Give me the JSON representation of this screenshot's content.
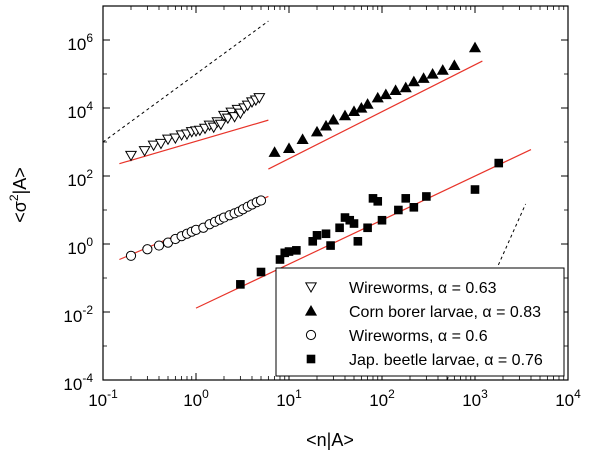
{
  "chart_data": {
    "type": "scatter",
    "title": "",
    "xlabel": "<n|A>",
    "ylabel_parts": [
      "<σ",
      "2",
      "|A>"
    ],
    "x_scale": "log",
    "y_scale": "log",
    "xlim": [
      0.1,
      10000
    ],
    "ylim": [
      0.0001,
      10000000
    ],
    "x_ticks": [
      {
        "base": "10",
        "exp": "-1",
        "value": 0.1
      },
      {
        "base": "10",
        "exp": "0",
        "value": 1
      },
      {
        "base": "10",
        "exp": "1",
        "value": 10
      },
      {
        "base": "10",
        "exp": "2",
        "value": 100
      },
      {
        "base": "10",
        "exp": "3",
        "value": 1000
      },
      {
        "base": "10",
        "exp": "4",
        "value": 10000
      }
    ],
    "y_ticks": [
      {
        "base": "10",
        "exp": "-4",
        "value": 0.0001
      },
      {
        "base": "10",
        "exp": "-2",
        "value": 0.01
      },
      {
        "base": "10",
        "exp": "0",
        "value": 1
      },
      {
        "base": "10",
        "exp": "2",
        "value": 100
      },
      {
        "base": "10",
        "exp": "4",
        "value": 10000
      },
      {
        "base": "10",
        "exp": "6",
        "value": 1000000
      }
    ],
    "grid": false,
    "legend_position": "bottom-right",
    "series": [
      {
        "name": "Wireworms, α = 0.63",
        "marker": "triangle-down-open",
        "fit": {
          "x": [
            0.15,
            6
          ],
          "y": [
            230,
            4400
          ]
        },
        "points": [
          [
            0.2,
            400
          ],
          [
            0.28,
            550
          ],
          [
            0.35,
            800
          ],
          [
            0.42,
            900
          ],
          [
            0.5,
            1200
          ],
          [
            0.6,
            1300
          ],
          [
            0.7,
            1600
          ],
          [
            0.8,
            1700
          ],
          [
            0.9,
            2000
          ],
          [
            1.0,
            2100
          ],
          [
            1.1,
            2200
          ],
          [
            1.25,
            2500
          ],
          [
            1.4,
            3100
          ],
          [
            1.55,
            2700
          ],
          [
            1.7,
            3900
          ],
          [
            1.85,
            3300
          ],
          [
            2.0,
            6000
          ],
          [
            2.2,
            5000
          ],
          [
            2.4,
            7500
          ],
          [
            2.6,
            5500
          ],
          [
            2.8,
            9000
          ],
          [
            3.0,
            7000
          ],
          [
            3.3,
            10000
          ],
          [
            3.6,
            12000
          ],
          [
            4.0,
            15000
          ],
          [
            4.4,
            17000
          ],
          [
            4.8,
            20000
          ]
        ]
      },
      {
        "name": "Corn borer larvae, α = 0.83",
        "marker": "triangle-up-filled",
        "fit": {
          "x": [
            6,
            1200
          ],
          "y": [
            160,
            240000
          ]
        },
        "points": [
          [
            7,
            500
          ],
          [
            10,
            650
          ],
          [
            14,
            1200
          ],
          [
            20,
            2000
          ],
          [
            25,
            3000
          ],
          [
            30,
            4500
          ],
          [
            40,
            6000
          ],
          [
            50,
            8000
          ],
          [
            60,
            10000
          ],
          [
            70,
            13000
          ],
          [
            90,
            20000
          ],
          [
            110,
            25000
          ],
          [
            140,
            33000
          ],
          [
            180,
            40000
          ],
          [
            220,
            60000
          ],
          [
            280,
            75000
          ],
          [
            350,
            100000
          ],
          [
            450,
            130000
          ],
          [
            600,
            180000
          ],
          [
            1000,
            600000
          ]
        ]
      },
      {
        "name": "Wireworms, α = 0.6",
        "marker": "circle-open",
        "fit": {
          "x": [
            0.15,
            6
          ],
          "y": [
            0.35,
            25
          ]
        },
        "points": [
          [
            0.2,
            0.45
          ],
          [
            0.3,
            0.7
          ],
          [
            0.4,
            0.9
          ],
          [
            0.5,
            1.1
          ],
          [
            0.6,
            1.4
          ],
          [
            0.7,
            1.7
          ],
          [
            0.8,
            2.0
          ],
          [
            0.9,
            2.3
          ],
          [
            1.0,
            2.6
          ],
          [
            1.2,
            3.0
          ],
          [
            1.4,
            3.8
          ],
          [
            1.6,
            4.5
          ],
          [
            1.8,
            5.2
          ],
          [
            2.0,
            6.0
          ],
          [
            2.3,
            7.0
          ],
          [
            2.6,
            8.0
          ],
          [
            2.9,
            9.0
          ],
          [
            3.2,
            10.5
          ],
          [
            3.6,
            12.5
          ],
          [
            4.0,
            14.5
          ],
          [
            4.5,
            17.0
          ],
          [
            5.0,
            19.0
          ]
        ]
      },
      {
        "name": "Jap. beetle larvae, α = 0.76",
        "marker": "square-filled",
        "fit": {
          "x": [
            1.0,
            4000
          ],
          "y": [
            0.013,
            600
          ]
        },
        "points": [
          [
            3,
            0.065
          ],
          [
            5,
            0.15
          ],
          [
            8,
            0.35
          ],
          [
            9,
            0.55
          ],
          [
            10,
            0.6
          ],
          [
            12,
            0.65
          ],
          [
            18,
            1.2
          ],
          [
            20,
            1.8
          ],
          [
            25,
            2.0
          ],
          [
            28,
            0.9
          ],
          [
            35,
            3.0
          ],
          [
            40,
            6.0
          ],
          [
            45,
            5.0
          ],
          [
            50,
            4.0
          ],
          [
            55,
            1.2
          ],
          [
            70,
            3.0
          ],
          [
            80,
            22.0
          ],
          [
            90,
            18.0
          ],
          [
            100,
            5.0
          ],
          [
            150,
            10.0
          ],
          [
            180,
            22.0
          ],
          [
            220,
            12.0
          ],
          [
            300,
            25.0
          ],
          [
            1000,
            40.0
          ],
          [
            1800,
            240.0
          ]
        ]
      }
    ],
    "reference_lines": [
      {
        "style": "dashed",
        "x": [
          0.1,
          6
        ],
        "y": [
          1000,
          3600000
        ]
      },
      {
        "style": "dashed",
        "x": [
          500,
          3500
        ],
        "y": [
          0.0001,
          15
        ]
      }
    ]
  }
}
